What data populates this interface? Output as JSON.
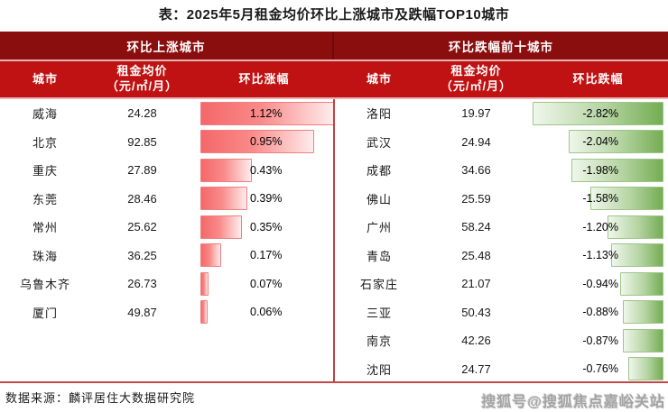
{
  "title": "表：2025年5月租金均价环比上涨城市及跌幅TOP10城市",
  "left_table": {
    "band_title": "环比上涨城市",
    "columns": {
      "city": "城市",
      "price_line1": "租金均价",
      "price_line2": "（元/㎡/月）",
      "change": "环比涨幅"
    },
    "rows": [
      {
        "city": "威海",
        "price": "24.28",
        "change": "1.12%"
      },
      {
        "city": "北京",
        "price": "92.85",
        "change": "0.95%"
      },
      {
        "city": "重庆",
        "price": "27.89",
        "change": "0.43%"
      },
      {
        "city": "东莞",
        "price": "28.46",
        "change": "0.39%"
      },
      {
        "city": "常州",
        "price": "25.62",
        "change": "0.35%"
      },
      {
        "city": "珠海",
        "price": "36.25",
        "change": "0.17%"
      },
      {
        "city": "乌鲁木齐",
        "price": "26.73",
        "change": "0.07%"
      },
      {
        "city": "厦门",
        "price": "49.87",
        "change": "0.06%"
      }
    ]
  },
  "right_table": {
    "band_title": "环比跌幅前十城市",
    "columns": {
      "city": "城市",
      "price_line1": "租金均价",
      "price_line2": "（元/㎡/月）",
      "change": "环比跌幅"
    },
    "rows": [
      {
        "city": "洛阳",
        "price": "19.97",
        "change": "-2.82%"
      },
      {
        "city": "武汉",
        "price": "24.94",
        "change": "-2.04%"
      },
      {
        "city": "成都",
        "price": "34.66",
        "change": "-1.98%"
      },
      {
        "city": "佛山",
        "price": "25.59",
        "change": "-1.58%"
      },
      {
        "city": "广州",
        "price": "58.24",
        "change": "-1.20%"
      },
      {
        "city": "青岛",
        "price": "25.48",
        "change": "-1.13%"
      },
      {
        "city": "石家庄",
        "price": "21.07",
        "change": "-0.94%"
      },
      {
        "city": "三亚",
        "price": "50.43",
        "change": "-0.88%"
      },
      {
        "city": "南京",
        "price": "42.26",
        "change": "-0.87%"
      },
      {
        "city": "沈阳",
        "price": "24.77",
        "change": "-0.76%"
      }
    ]
  },
  "footer": {
    "source": "数据来源：麟评居住大数据研究院",
    "watermark": "搜狐号@搜狐焦点嘉峪关站"
  },
  "colors": {
    "band_dark_red": "#8b0e0e",
    "band_bright_red": "#c01212",
    "divider_red": "#bc4343",
    "bar_up_start": "#f4686a",
    "bar_up_end": "#feecec",
    "bar_up_border": "#ef7f7f",
    "bar_down_start": "#eff7eb",
    "bar_down_end": "#74ad53",
    "bar_down_border": "#9ec58a",
    "watermark_gray": "#a3a3a3"
  },
  "chart_data": [
    {
      "type": "bar",
      "orientation": "horizontal",
      "title": "环比上涨城市",
      "categories": [
        "威海",
        "北京",
        "重庆",
        "东莞",
        "常州",
        "珠海",
        "乌鲁木齐",
        "厦门"
      ],
      "series": [
        {
          "name": "租金均价（元/㎡/月）",
          "values": [
            24.28,
            92.85,
            27.89,
            28.46,
            25.62,
            36.25,
            26.73,
            49.87
          ]
        },
        {
          "name": "环比涨幅(%)",
          "values": [
            1.12,
            0.95,
            0.43,
            0.39,
            0.35,
            0.17,
            0.07,
            0.06
          ]
        }
      ],
      "xlabel": "环比涨幅",
      "ylabel": "城市",
      "xlim": [
        0,
        1.12
      ],
      "grid": false,
      "legend_position": "none",
      "bar_color": "#f4686a"
    },
    {
      "type": "bar",
      "orientation": "horizontal",
      "title": "环比跌幅前十城市",
      "categories": [
        "洛阳",
        "武汉",
        "成都",
        "佛山",
        "广州",
        "青岛",
        "石家庄",
        "三亚",
        "南京",
        "沈阳"
      ],
      "series": [
        {
          "name": "租金均价（元/㎡/月）",
          "values": [
            19.97,
            24.94,
            34.66,
            25.59,
            58.24,
            25.48,
            21.07,
            50.43,
            42.26,
            24.77
          ]
        },
        {
          "name": "环比跌幅(%)",
          "values": [
            -2.82,
            -2.04,
            -1.98,
            -1.58,
            -1.2,
            -1.13,
            -0.94,
            -0.88,
            -0.87,
            -0.76
          ]
        }
      ],
      "xlabel": "环比跌幅",
      "ylabel": "城市",
      "xlim": [
        -2.82,
        0
      ],
      "grid": false,
      "legend_position": "none",
      "bar_color": "#74ad53"
    }
  ]
}
